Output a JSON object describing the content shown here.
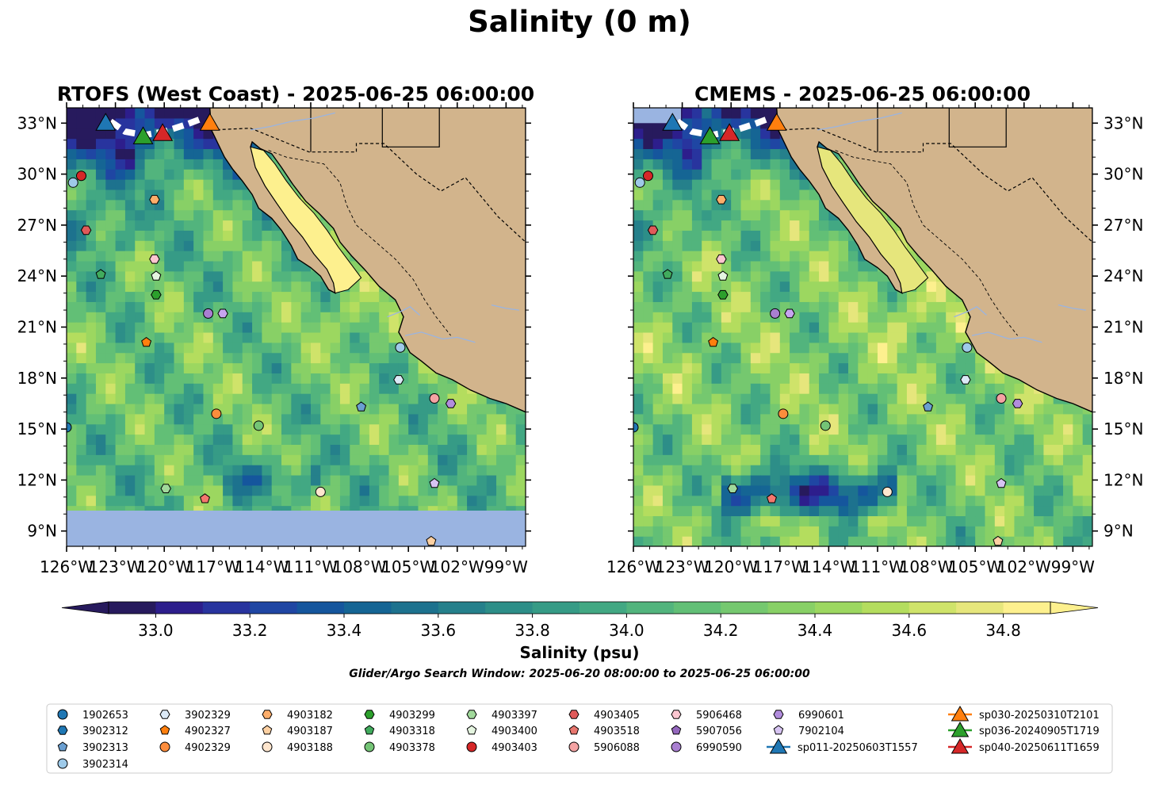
{
  "title": "Salinity (0 m)",
  "panels": [
    {
      "title": "RTOFS (West Coast) - 2025-06-25 06:00:00",
      "blank_south_edge": 10.2
    },
    {
      "title": "CMEMS - 2025-06-25 06:00:00",
      "blank_north_edge": 33.0
    }
  ],
  "map_extent": {
    "lon": [
      -126,
      -97.8
    ],
    "lat": [
      8.1,
      33.9
    ]
  },
  "lat_ticks": [
    "33°N",
    "30°N",
    "27°N",
    "24°N",
    "21°N",
    "18°N",
    "15°N",
    "12°N",
    "9°N"
  ],
  "lat_values": [
    33,
    30,
    27,
    24,
    21,
    18,
    15,
    12,
    9
  ],
  "lon_ticks": [
    "126°W",
    "123°W",
    "120°W",
    "117°W",
    "114°W",
    "111°W",
    "108°W",
    "105°W",
    "102°W",
    "99°W"
  ],
  "lon_values": [
    -126,
    -123,
    -120,
    -117,
    -114,
    -111,
    -108,
    -105,
    -102,
    -99
  ],
  "colorbar": {
    "label": "Salinity (psu)",
    "range": [
      32.9,
      34.9
    ],
    "step": 0.1,
    "ticks": [
      "33.0",
      "33.2",
      "33.4",
      "33.6",
      "33.8",
      "34.0",
      "34.2",
      "34.4",
      "34.6",
      "34.8"
    ],
    "tick_values": [
      33.0,
      33.2,
      33.4,
      33.6,
      33.8,
      34.0,
      34.2,
      34.4,
      34.6,
      34.8
    ],
    "colors": [
      "#271a5d",
      "#2d1e8c",
      "#28349e",
      "#1f46a3",
      "#15569d",
      "#156594",
      "#1d728e",
      "#25808b",
      "#2d8e88",
      "#369b86",
      "#42a883",
      "#52b47d",
      "#62bf76",
      "#75c86f",
      "#88d066",
      "#9cd760",
      "#b4dd5e",
      "#cfe36a",
      "#e6e67c",
      "#fdf08e"
    ],
    "under_color": "#271a5d",
    "over_color": "#fdf08e"
  },
  "colors": {
    "land": "#d2b48c",
    "no_data": "#9ab4e1",
    "river": "#9ab4e1",
    "coast": "#000000"
  },
  "window_text": "Glider/Argo Search Window: 2025-06-20 08:00:00 to 2025-06-25 06:00:00",
  "floats": [
    {
      "id": "1902653",
      "marker": "circle",
      "color": "#1f77b4",
      "lon": -126,
      "lat": 15.1
    },
    {
      "id": "3902312",
      "marker": "hexagon",
      "color": "#1f77b4",
      "lon": null,
      "lat": null
    },
    {
      "id": "3902313",
      "marker": "pentagon",
      "color": "#6a9fd1",
      "lon": -107.9,
      "lat": 16.3
    },
    {
      "id": "3902314",
      "marker": "circle",
      "color": "#9ecae9",
      "lon": -105.5,
      "lat": 19.8
    },
    {
      "id": "3902329",
      "marker": "hexagon",
      "color": "#dbe9f6",
      "lon": -105.6,
      "lat": 17.9
    },
    {
      "id": "4902327",
      "marker": "pentagon",
      "color": "#ff7f0e",
      "lon": -121.1,
      "lat": 20.1
    },
    {
      "id": "4902329",
      "marker": "circle",
      "color": "#fd8d3c",
      "lon": -116.8,
      "lat": 15.9
    },
    {
      "id": "4903182",
      "marker": "hexagon",
      "color": "#fdae6b",
      "lon": -120.6,
      "lat": 28.5
    },
    {
      "id": "4903187",
      "marker": "pentagon",
      "color": "#fdd0a2",
      "lon": -103.6,
      "lat": 8.4
    },
    {
      "id": "4903188",
      "marker": "circle",
      "color": "#fee6ce",
      "lon": -110.4,
      "lat": 11.3
    },
    {
      "id": "4903299",
      "marker": "hexagon",
      "color": "#2ca02c",
      "lon": -120.5,
      "lat": 22.9
    },
    {
      "id": "4903318",
      "marker": "pentagon",
      "color": "#41ab5d",
      "lon": -123.9,
      "lat": 24.1
    },
    {
      "id": "4903378",
      "marker": "circle",
      "color": "#74c476",
      "lon": -114.2,
      "lat": 15.2
    },
    {
      "id": "4903397",
      "marker": "hexagon",
      "color": "#a1d99b",
      "lon": -119.9,
      "lat": 11.5
    },
    {
      "id": "4903400",
      "marker": "pentagon",
      "color": "#e5f5e0",
      "lon": -120.5,
      "lat": 24.0
    },
    {
      "id": "4903403",
      "marker": "circle",
      "color": "#d62728",
      "lon": -125.1,
      "lat": 29.9
    },
    {
      "id": "4903405",
      "marker": "hexagon",
      "color": "#e05a5a",
      "lon": -124.8,
      "lat": 26.7
    },
    {
      "id": "4903518",
      "marker": "pentagon",
      "color": "#e8766e",
      "lon": null,
      "lat": null
    },
    {
      "id": "5906088",
      "marker": "circle",
      "color": "#f4a3a3",
      "lon": -103.4,
      "lat": 16.8
    },
    {
      "id": "5906468",
      "marker": "hexagon",
      "color": "#fcc6d0",
      "lon": -120.6,
      "lat": 25.0
    },
    {
      "id": "5907056",
      "marker": "pentagon",
      "color": "#9467bd",
      "lon": null,
      "lat": null
    },
    {
      "id": "6990590",
      "marker": "circle",
      "color": "#a97fd1",
      "lon": -117.3,
      "lat": 21.8
    },
    {
      "id": "6990601",
      "marker": "hexagon",
      "color": "#b28ddd",
      "lon": -102.4,
      "lat": 16.5
    },
    {
      "id": "7902104",
      "marker": "pentagon",
      "color": "#d7c4f2",
      "lon": -103.4,
      "lat": 11.8
    }
  ],
  "extra_symbols": [
    {
      "marker": "pentagon",
      "color": "#f4776e",
      "lon": -117.5,
      "lat": 10.9
    },
    {
      "marker": "hexagon",
      "color": "#c7a4ef",
      "lon": -116.4,
      "lat": 21.8
    },
    {
      "marker": "circle",
      "color": "#9ecae9",
      "lon": -125.6,
      "lat": 29.5
    }
  ],
  "gliders": [
    {
      "id": "sp011-20250603T1557",
      "color": "#1f77b4",
      "lon": -123.6,
      "lat": 33.0
    },
    {
      "id": "sp030-20250310T2101",
      "color": "#ff7f0e",
      "lon": -117.2,
      "lat": 33.0
    },
    {
      "id": "sp036-20240905T1719",
      "color": "#2ca02c",
      "lon": -121.3,
      "lat": 32.2
    },
    {
      "id": "sp040-20250611T1659",
      "color": "#d62728",
      "lon": -120.1,
      "lat": 32.4
    }
  ],
  "glider_track": [
    [
      -123.3,
      33.1
    ],
    [
      -122.4,
      32.5
    ],
    [
      -121.2,
      32.3
    ],
    [
      -120.0,
      32.5
    ],
    [
      -118.7,
      32.9
    ],
    [
      -117.6,
      33.3
    ]
  ]
}
